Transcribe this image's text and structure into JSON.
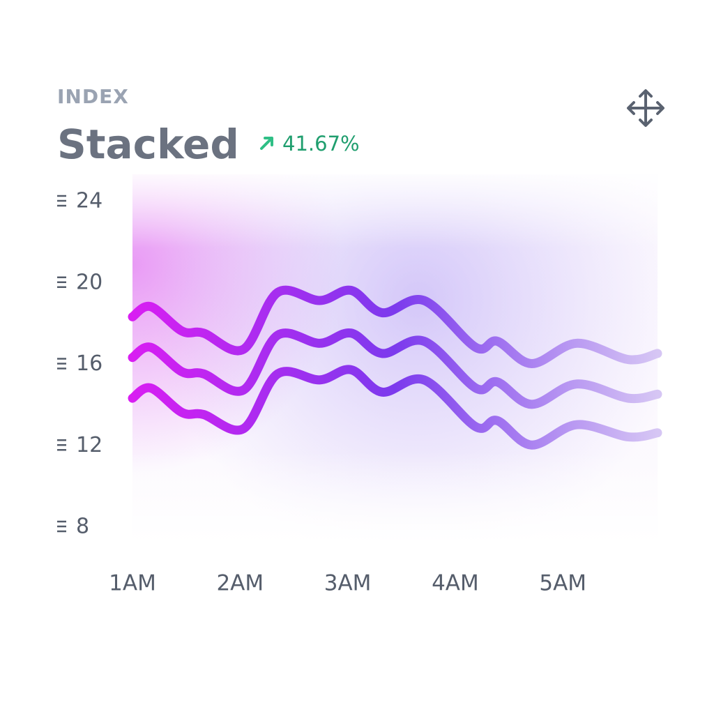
{
  "chart_data": {
    "type": "line",
    "overline": "INDEX",
    "title": "Stacked",
    "change": "41.67%",
    "x": [
      1.0,
      1.17,
      1.46,
      1.66,
      2.03,
      2.35,
      2.74,
      3.03,
      3.32,
      3.71,
      4.19,
      4.39,
      4.71,
      5.13,
      5.61,
      5.88
    ],
    "series": [
      {
        "color": "#d81ef2",
        "values": [
          18.3,
          18.8,
          17.6,
          17.5,
          16.7,
          19.5,
          19.1,
          19.6,
          18.5,
          19.1,
          16.8,
          17.1,
          16.0,
          17.0,
          16.2,
          16.5
        ]
      },
      {
        "color": "#d81ef2",
        "values": [
          16.3,
          16.8,
          15.6,
          15.5,
          14.7,
          17.4,
          17.0,
          17.5,
          16.5,
          17.1,
          14.8,
          15.1,
          14.0,
          15.0,
          14.3,
          14.5
        ]
      },
      {
        "color": "#d81ef2",
        "values": [
          14.3,
          14.8,
          13.6,
          13.5,
          12.8,
          15.5,
          15.2,
          15.7,
          14.6,
          15.2,
          12.9,
          13.2,
          12.0,
          13.0,
          12.4,
          12.6
        ]
      }
    ],
    "gradient": [
      "#d81ef2",
      "#7c3aed",
      "#d6c6f4"
    ],
    "xlim": [
      1,
      5.88
    ],
    "xticks": [
      {
        "value": 1,
        "label": "1AM"
      },
      {
        "value": 2,
        "label": "2AM"
      },
      {
        "value": 3,
        "label": "3AM"
      },
      {
        "value": 4,
        "label": "4AM"
      },
      {
        "value": 5,
        "label": "5AM"
      }
    ],
    "ylim": [
      8,
      24
    ],
    "yticks": [
      24,
      20,
      16,
      12,
      8
    ]
  }
}
